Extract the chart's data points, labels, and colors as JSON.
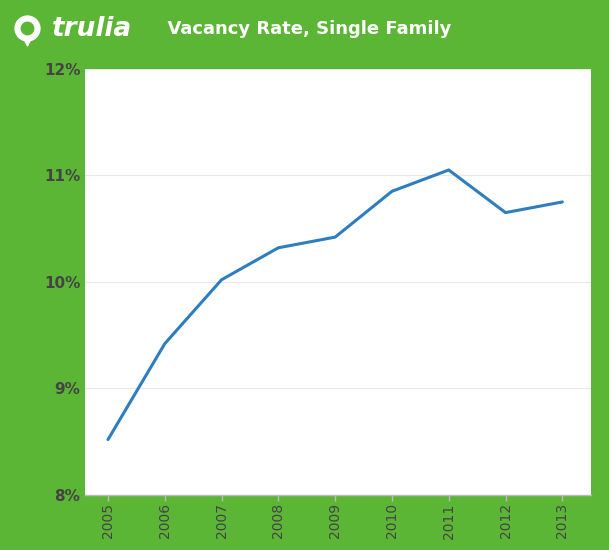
{
  "years": [
    2005,
    2006,
    2007,
    2008,
    2009,
    2010,
    2011,
    2012,
    2013
  ],
  "values": [
    8.52,
    9.42,
    10.02,
    10.32,
    10.42,
    10.85,
    11.05,
    10.65,
    10.75
  ],
  "line_color": "#2e7ebf",
  "line_width": 2.2,
  "ylim": [
    8.0,
    12.0
  ],
  "yticks": [
    8,
    9,
    10,
    11,
    12
  ],
  "ytick_labels": [
    "8%",
    "9%",
    "10%",
    "11%",
    "12%"
  ],
  "xtick_labels": [
    "2005",
    "2006",
    "2007",
    "2008",
    "2009",
    "2010",
    "2011",
    "2012",
    "2013"
  ],
  "header_bg_color": "#5cb635",
  "header_text_color": "#ffffff",
  "header_title": "  Vacancy Rate, Single Family",
  "header_brand": "trulia",
  "plot_bg_color": "#ffffff",
  "outer_bg_color": "#5cb635",
  "axis_color": "#bbbbbb",
  "tick_color": "#444444",
  "grid_color": "#e8e8e8"
}
